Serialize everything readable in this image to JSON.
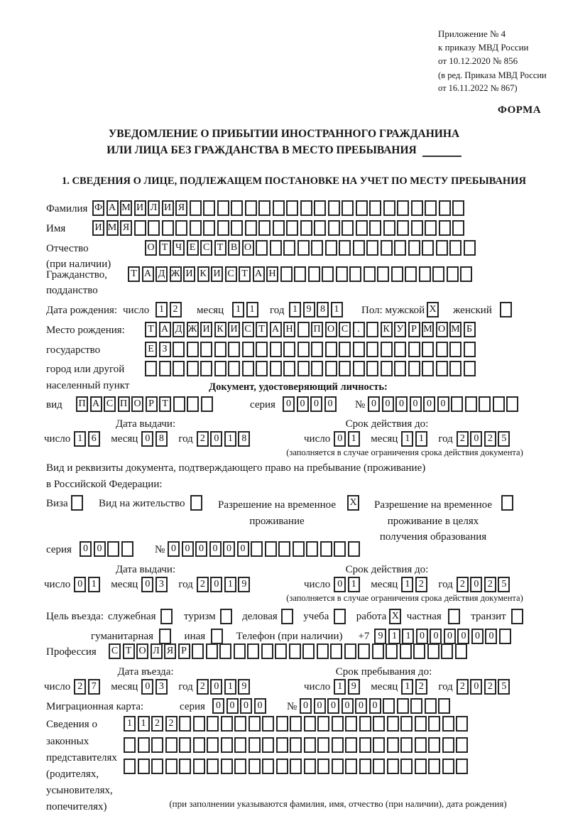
{
  "header": {
    "appendix_line1": "Приложение № 4",
    "appendix_line2": "к приказу МВД России",
    "appendix_line3": "от 10.12.2020 № 856",
    "revision_line1": "(в ред. Приказа МВД России",
    "revision_line2": "от 16.11.2022 № 867)",
    "form_marker": "ФОРМА"
  },
  "title": {
    "line1": "УВЕДОМЛЕНИЕ О ПРИБЫТИИ ИНОСТРАННОГО ГРАЖДАНИНА",
    "line2": "ИЛИ ЛИЦА БЕЗ ГРАЖДАНСТВА В МЕСТО ПРЕБЫВАНИЯ"
  },
  "section1": {
    "heading": "1. СВЕДЕНИЯ О ЛИЦЕ, ПОДЛЕЖАЩЕМ ПОСТАНОВКЕ НА УЧЕТ ПО МЕСТУ ПРЕБЫВАНИЯ"
  },
  "shared": {
    "day_label": "число",
    "month_label": "месяц",
    "year_label": "год"
  },
  "person": {
    "surname_label": "Фамилия",
    "surname": "ФАМИЛИЯ",
    "name_label": "Имя",
    "name": "ИМЯ",
    "patronymic_label": "Отчество",
    "patronymic_label2": "(при наличии)",
    "patronymic": "ОТЧЕСТВО",
    "citizenship_label": "Гражданство,",
    "citizenship_label2": "подданство",
    "citizenship": "ТАДЖИКИСТАН",
    "birth_date_label": "Дата рождения:",
    "birth_day": "12",
    "birth_month": "11",
    "birth_year": "1981",
    "sex_label": "Пол: мужской",
    "sex_male": "X",
    "sex_female_label": "женский",
    "sex_female": "",
    "birth_place_label": "Место рождения:",
    "birth_place_label2": "государство",
    "birth_place_label3": "город или другой",
    "birth_place_label4": "населенный пункт",
    "birth_place_row1": "ТАДЖИКИСТАН ПОС. КУРМОМБ",
    "birth_place_row2": "ЕЗ",
    "birth_place_row3": ""
  },
  "identity_doc": {
    "heading": "Документ, удостоверяющий личность:",
    "kind_label": "вид",
    "kind": "ПАСПОРТ",
    "series_label": "серия",
    "series": "0000",
    "number_label": "№",
    "number": "000000",
    "issue_heading": "Дата выдачи:",
    "issue_day": "16",
    "issue_month": "08",
    "issue_year": "2018",
    "valid_heading": "Срок действия до:",
    "valid_day": "01",
    "valid_month": "11",
    "valid_year": "2025",
    "note": "(заполняется в случае ограничения срока действия документа)"
  },
  "stay_doc": {
    "intro_line1": "Вид и реквизиты документа, подтверждающего право на пребывание (проживание)",
    "intro_line2": "в Российской Федерации:",
    "visa_label": "Виза",
    "visa": "",
    "residence_permit_label": "Вид на жительство",
    "residence_permit": "",
    "trp_label_line1": "Разрешение на временное",
    "trp_label_line2": "проживание",
    "trp": "X",
    "trp_edu_label_line1": "Разрешение на временное",
    "trp_edu_label_line2": "проживание в целях",
    "trp_edu_label_line3": "получения образования",
    "trp_edu": "",
    "series_label": "серия",
    "series": "00",
    "number_label": "№",
    "number": "000000",
    "issue_heading": "Дата выдачи:",
    "issue_day": "01",
    "issue_month": "03",
    "issue_year": "2019",
    "valid_heading": "Срок действия до:",
    "valid_day": "01",
    "valid_month": "12",
    "valid_year": "2025",
    "note": "(заполняется в случае ограничения срока действия документа)"
  },
  "visit": {
    "purpose_label": "Цель въезда:",
    "official_label": "служебная",
    "official": "",
    "tourism_label": "туризм",
    "tourism": "",
    "business_label": "деловая",
    "business": "",
    "study_label": "учеба",
    "study": "",
    "work_label": "работа",
    "work": "X",
    "private_label": "частная",
    "private": "",
    "transit_label": "транзит",
    "transit": "",
    "humanitarian_label": "гуманитарная",
    "humanitarian": "",
    "other_label": "иная",
    "other": "",
    "phone_label": "Телефон (при наличии)",
    "phone_prefix": "+7",
    "phone": "911000000",
    "profession_label": "Профессия",
    "profession": "СТОЛЯР",
    "entry_heading": "Дата въезда:",
    "entry_day": "27",
    "entry_month": "03",
    "entry_year": "2019",
    "stay_heading": "Срок пребывания до:",
    "stay_day": "19",
    "stay_month": "12",
    "stay_year": "2025",
    "migration_card_label": "Миграционная карта:",
    "migration_series_label": "серия",
    "migration_series": "0000",
    "migration_number_label": "№",
    "migration_number": "000000"
  },
  "representatives": {
    "label_line1": "Сведения о",
    "label_line2": "законных",
    "label_line3": "представителях",
    "label_line4": "(родителях,",
    "label_line5": "усыновителях,",
    "label_line6": "попечителях)",
    "row1": "1122",
    "row2": "",
    "row3": "",
    "note": "(при заполнении указываются фамилия, имя, отчество (при наличии), дата рождения)"
  }
}
